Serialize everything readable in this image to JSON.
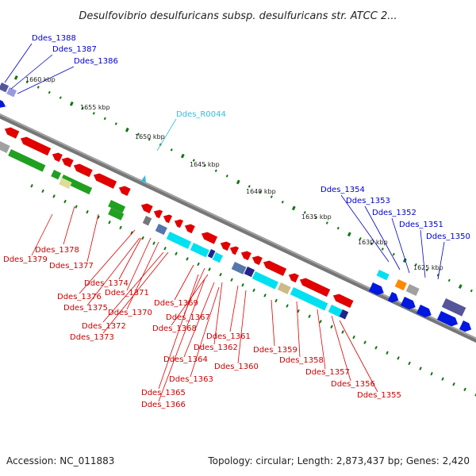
{
  "title": "Desulfovibrio desulfuricans subsp. desulfuricans str. ATCC 2...",
  "footer": {
    "accession": "Accession: NC_011883",
    "summary": "Topology: circular; Length: 2,873,437 bp; Genes: 2,420"
  },
  "colors": {
    "forward_strand": "#0000dd",
    "reverse_strand": "#dd0000",
    "rna": "#33bbdd",
    "backbone": "#777777",
    "tick": "#117711"
  },
  "position_ticks": [
    "1660 kbp",
    "1655 kbp",
    "1650 kbp",
    "1645 kbp",
    "1640 kbp",
    "1635 kbp",
    "1630 kbp",
    "1625 kbp"
  ],
  "labels_top": {
    "blue": [
      "Ddes_1388",
      "Ddes_1387",
      "Ddes_1386",
      "Ddes_1354",
      "Ddes_1353",
      "Ddes_1352",
      "Ddes_1351",
      "Ddes_1350"
    ],
    "rna": [
      "Ddes_R0044"
    ]
  },
  "labels_bottom": [
    "Ddes_1378",
    "Ddes_1379",
    "Ddes_1377",
    "Ddes_1374",
    "Ddes_1376",
    "Ddes_1371",
    "Ddes_1375",
    "Ddes_1370",
    "Ddes_1369",
    "Ddes_1372",
    "Ddes_1367",
    "Ddes_1368",
    "Ddes_1373",
    "Ddes_1361",
    "Ddes_1362",
    "Ddes_1359",
    "Ddes_1358",
    "Ddes_1364",
    "Ddes_1360",
    "Ddes_1357",
    "Ddes_1363",
    "Ddes_1356",
    "Ddes_1365",
    "Ddes_1355",
    "Ddes_1366"
  ]
}
